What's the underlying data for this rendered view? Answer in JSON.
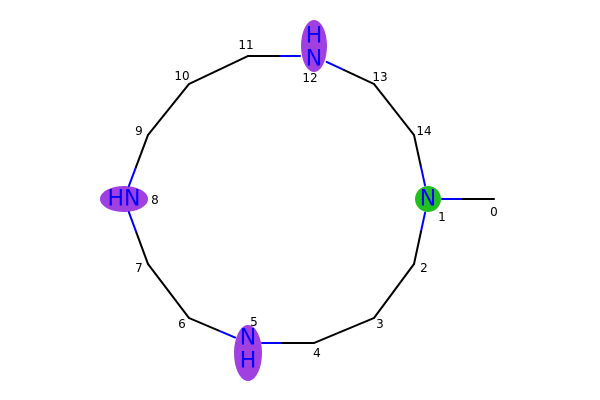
{
  "colors": {
    "carbon_bond": "#000000",
    "nitrogen": "#0000ff",
    "highlight_purple": "#a040e0",
    "highlight_green": "#20c020"
  },
  "atoms": [
    {
      "index": "0",
      "element": "C",
      "label": ""
    },
    {
      "index": "1",
      "element": "N",
      "label": "N",
      "highlight": "green"
    },
    {
      "index": "2",
      "element": "C",
      "label": ""
    },
    {
      "index": "3",
      "element": "C",
      "label": ""
    },
    {
      "index": "4",
      "element": "C",
      "label": ""
    },
    {
      "index": "5",
      "element": "N",
      "label": "NH",
      "highlight": "purple"
    },
    {
      "index": "6",
      "element": "C",
      "label": ""
    },
    {
      "index": "7",
      "element": "C",
      "label": ""
    },
    {
      "index": "8",
      "element": "N",
      "label": "HN",
      "highlight": "purple"
    },
    {
      "index": "9",
      "element": "C",
      "label": ""
    },
    {
      "index": "10",
      "element": "C",
      "label": ""
    },
    {
      "index": "11",
      "element": "C",
      "label": ""
    },
    {
      "index": "12",
      "element": "N",
      "label": "HN",
      "highlight": "purple"
    },
    {
      "index": "13",
      "element": "C",
      "label": ""
    },
    {
      "index": "14",
      "element": "C",
      "label": ""
    }
  ],
  "bonds": [
    [
      "0",
      "1"
    ],
    [
      "1",
      "2"
    ],
    [
      "2",
      "3"
    ],
    [
      "3",
      "4"
    ],
    [
      "4",
      "5"
    ],
    [
      "5",
      "6"
    ],
    [
      "6",
      "7"
    ],
    [
      "7",
      "8"
    ],
    [
      "8",
      "9"
    ],
    [
      "9",
      "10"
    ],
    [
      "10",
      "11"
    ],
    [
      "11",
      "12"
    ],
    [
      "12",
      "13"
    ],
    [
      "13",
      "14"
    ],
    [
      "14",
      "1"
    ]
  ]
}
